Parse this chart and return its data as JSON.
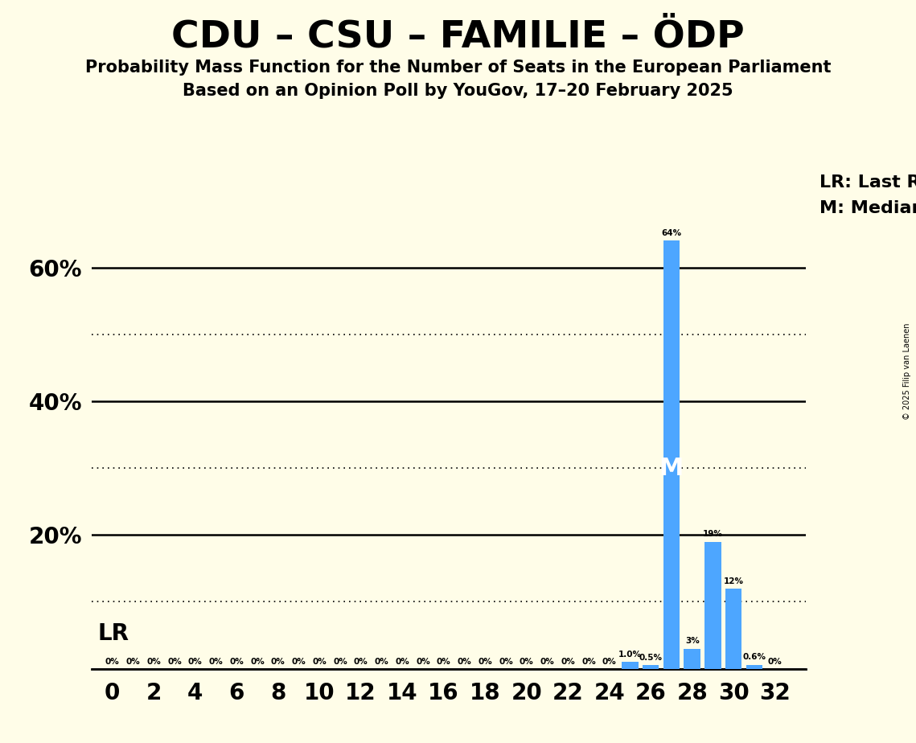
{
  "title": "CDU – CSU – FAMILIE – ÖDP",
  "subtitle1": "Probability Mass Function for the Number of Seats in the European Parliament",
  "subtitle2": "Based on an Opinion Poll by YouGov, 17–20 February 2025",
  "copyright": "© 2025 Filip van Laenen",
  "seats": [
    0,
    1,
    2,
    3,
    4,
    5,
    6,
    7,
    8,
    9,
    10,
    11,
    12,
    13,
    14,
    15,
    16,
    17,
    18,
    19,
    20,
    21,
    22,
    23,
    24,
    25,
    26,
    27,
    28,
    29,
    30,
    31,
    32
  ],
  "probabilities": [
    0,
    0,
    0,
    0,
    0,
    0,
    0,
    0,
    0,
    0,
    0,
    0,
    0,
    0,
    0,
    0,
    0,
    0,
    0,
    0,
    0,
    0,
    0,
    0,
    0,
    1.0,
    0.5,
    64,
    3,
    19,
    12,
    0.6,
    0
  ],
  "bar_color": "#4da6ff",
  "background_color": "#fffde8",
  "median_seat": 27,
  "last_result_seat": 27,
  "ylim": [
    0,
    70
  ],
  "solid_gridlines": [
    0,
    20,
    40,
    60
  ],
  "dotted_gridlines": [
    10,
    30,
    50
  ],
  "legend_lr": "LR: Last Result",
  "legend_m": "M: Median",
  "lr_label": "LR",
  "m_label": "M",
  "label_formats": {
    "0": "0%",
    "1.0": "1.0%",
    "0.5": "0.5%",
    "64": "64%",
    "3": "3%",
    "19": "19%",
    "12": "12%",
    "0.6": "0.6%"
  }
}
